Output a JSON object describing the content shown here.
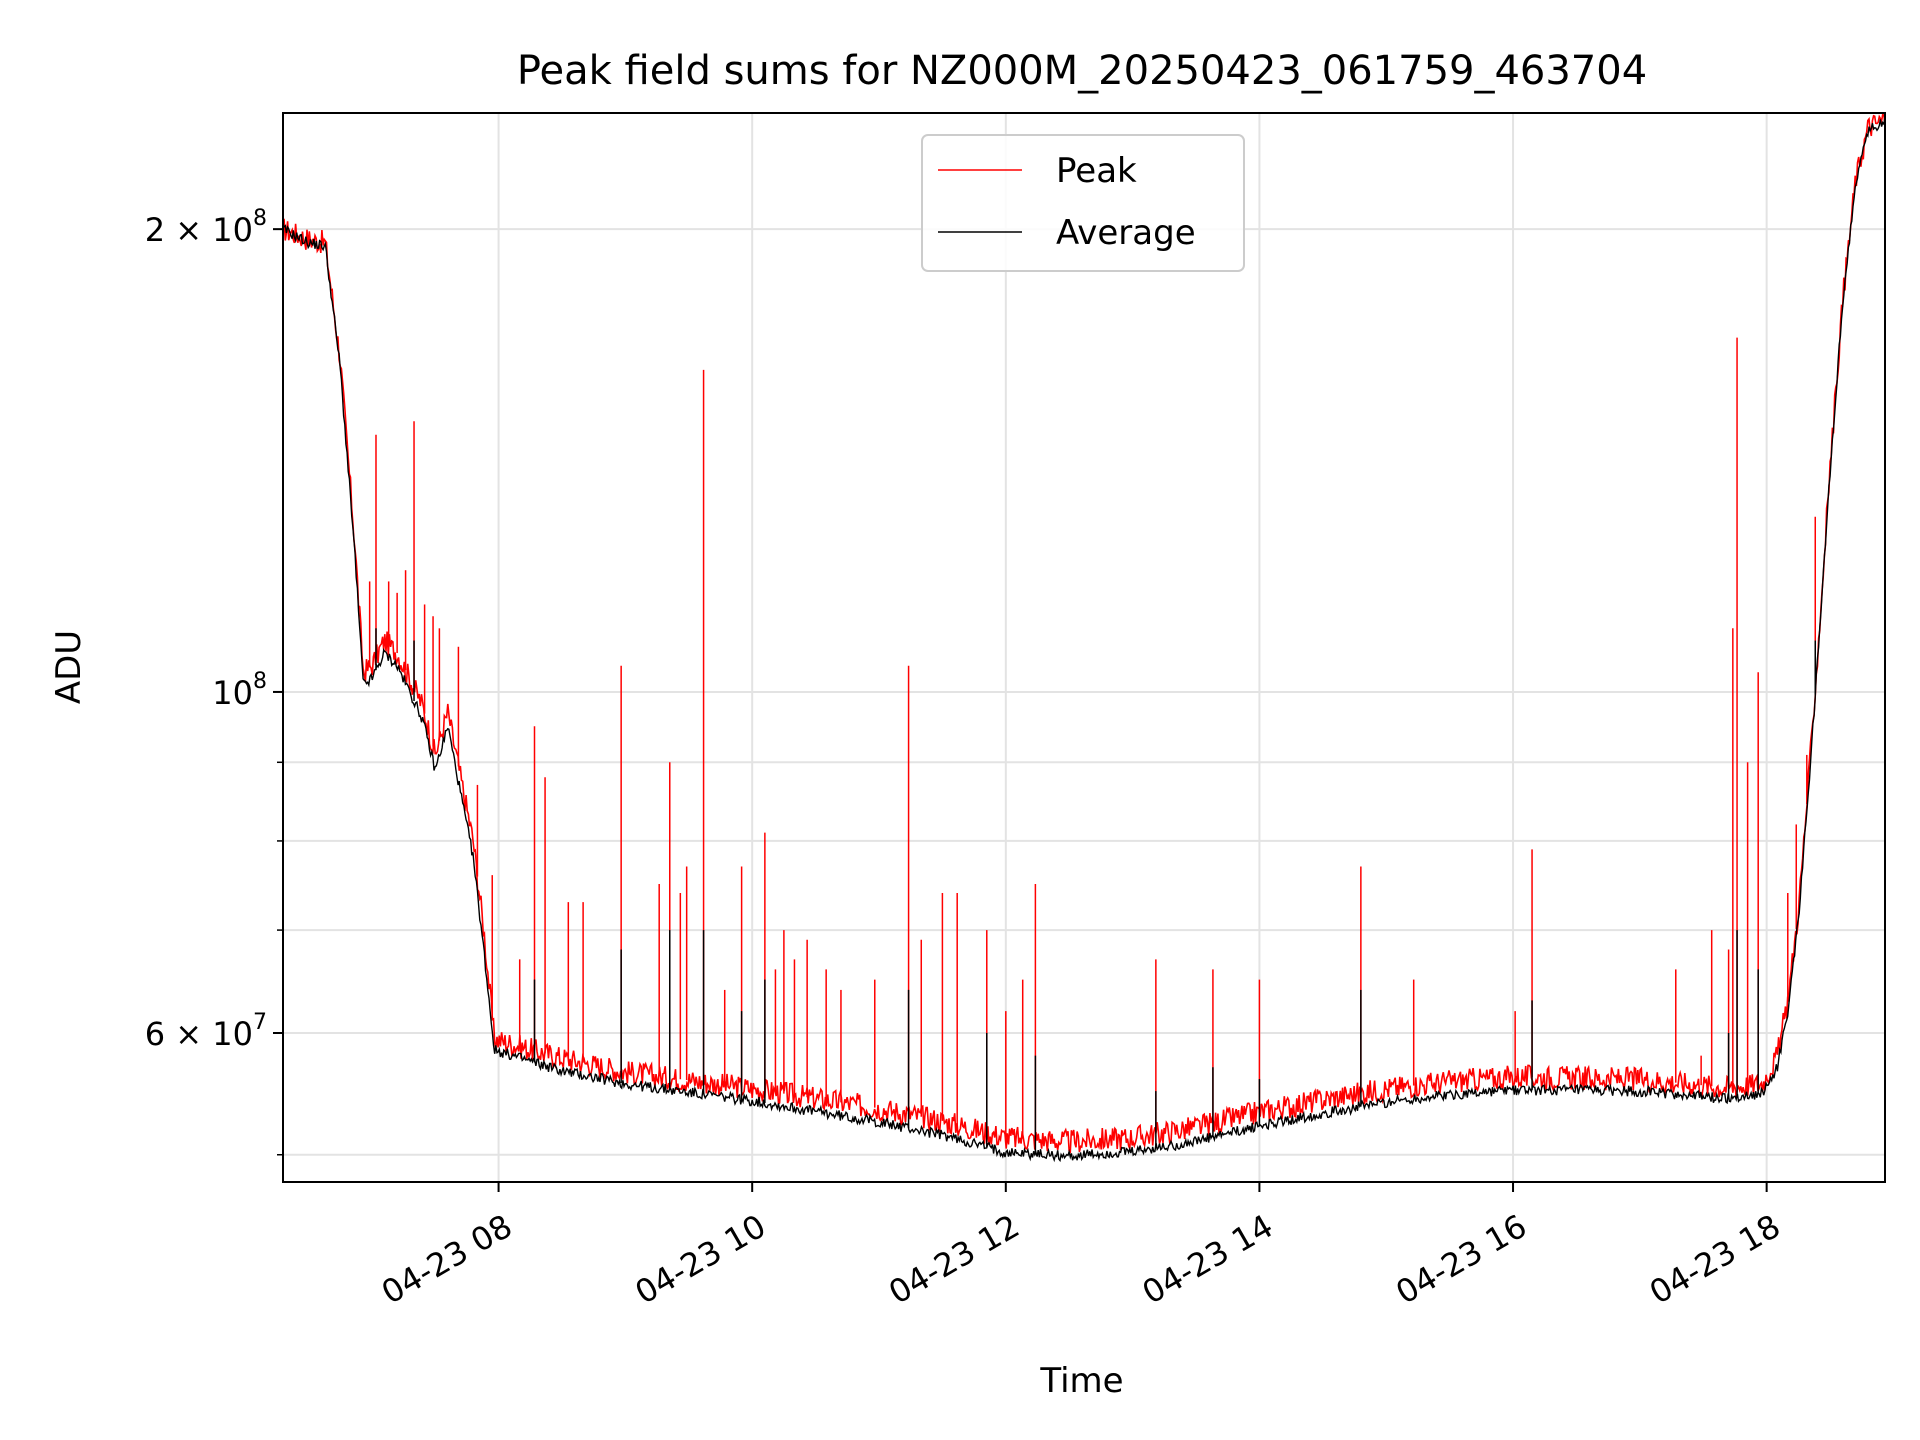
{
  "chart_data": {
    "type": "line",
    "title": "Peak field sums for NZ000M_20250423_061759_463704",
    "xlabel": "Time",
    "ylabel": "ADU",
    "yscale": "log",
    "grid": true,
    "legend_position": "top-center",
    "x_range": [
      "2025-04-23 06:18",
      "2025-04-23 18:56"
    ],
    "ylim": [
      48000000,
      238000000
    ],
    "x_ticks": [
      {
        "t": "2025-04-23 08:00",
        "label": "04-23 08"
      },
      {
        "t": "2025-04-23 10:00",
        "label": "04-23 10"
      },
      {
        "t": "2025-04-23 12:00",
        "label": "04-23 12"
      },
      {
        "t": "2025-04-23 14:00",
        "label": "04-23 14"
      },
      {
        "t": "2025-04-23 16:00",
        "label": "04-23 16"
      },
      {
        "t": "2025-04-23 18:00",
        "label": "04-23 18"
      }
    ],
    "y_major_ticks": [
      {
        "value": 60000000,
        "label": "6 × 10",
        "exp": "7"
      },
      {
        "value": 100000000,
        "label": "10",
        "exp": "8"
      },
      {
        "value": 200000000,
        "label": "2 × 10",
        "exp": "8"
      }
    ],
    "y_minor_ticks": [
      50000000,
      70000000,
      80000000,
      90000000
    ],
    "series": [
      {
        "name": "Peak",
        "color": "#ff0000",
        "baseline": [
          [
            "2025-04-23 06:18",
            200000000
          ],
          [
            "2025-04-23 06:30",
            197000000
          ],
          [
            "2025-04-23 06:38",
            196000000
          ],
          [
            "2025-04-23 06:45",
            165000000
          ],
          [
            "2025-04-23 06:52",
            125000000
          ],
          [
            "2025-04-23 06:56",
            103000000
          ],
          [
            "2025-04-23 07:00",
            104000000
          ],
          [
            "2025-04-23 07:06",
            108000000
          ],
          [
            "2025-04-23 07:12",
            106000000
          ],
          [
            "2025-04-23 07:18",
            102000000
          ],
          [
            "2025-04-23 07:24",
            98000000
          ],
          [
            "2025-04-23 07:30",
            91000000
          ],
          [
            "2025-04-23 07:36",
            97000000
          ],
          [
            "2025-04-23 07:42",
            88000000
          ],
          [
            "2025-04-23 07:48",
            80000000
          ],
          [
            "2025-04-23 07:53",
            70000000
          ],
          [
            "2025-04-23 07:58",
            59500000
          ],
          [
            "2025-04-23 08:10",
            58800000
          ],
          [
            "2025-04-23 08:30",
            57800000
          ],
          [
            "2025-04-23 09:00",
            56600000
          ],
          [
            "2025-04-23 10:00",
            55200000
          ],
          [
            "2025-04-23 11:00",
            53600000
          ],
          [
            "2025-04-23 11:30",
            52600000
          ],
          [
            "2025-04-23 12:00",
            51300000
          ],
          [
            "2025-04-23 12:30",
            51000000
          ],
          [
            "2025-04-23 13:00",
            51300000
          ],
          [
            "2025-04-23 13:30",
            52100000
          ],
          [
            "2025-04-23 14:00",
            53300000
          ],
          [
            "2025-04-23 14:30",
            54300000
          ],
          [
            "2025-04-23 15:00",
            55200000
          ],
          [
            "2025-04-23 15:30",
            55800000
          ],
          [
            "2025-04-23 16:00",
            56200000
          ],
          [
            "2025-04-23 17:00",
            56000000
          ],
          [
            "2025-04-23 17:40",
            55300000
          ],
          [
            "2025-04-23 17:58",
            55600000
          ],
          [
            "2025-04-23 18:05",
            58000000
          ],
          [
            "2025-04-23 18:10",
            63000000
          ],
          [
            "2025-04-23 18:15",
            72000000
          ],
          [
            "2025-04-23 18:20",
            88000000
          ],
          [
            "2025-04-23 18:25",
            110000000
          ],
          [
            "2025-04-23 18:30",
            140000000
          ],
          [
            "2025-04-23 18:36",
            180000000
          ],
          [
            "2025-04-23 18:42",
            215000000
          ],
          [
            "2025-04-23 18:48",
            233000000
          ],
          [
            "2025-04-23 18:56",
            236000000
          ]
        ],
        "spikes": [
          [
            "2025-04-23 06:59",
            118000000
          ],
          [
            "2025-04-23 07:02",
            147000000
          ],
          [
            "2025-04-23 07:08",
            118000000
          ],
          [
            "2025-04-23 07:12",
            116000000
          ],
          [
            "2025-04-23 07:16",
            120000000
          ],
          [
            "2025-04-23 07:20",
            150000000
          ],
          [
            "2025-04-23 07:25",
            114000000
          ],
          [
            "2025-04-23 07:29",
            112000000
          ],
          [
            "2025-04-23 07:32",
            110000000
          ],
          [
            "2025-04-23 07:41",
            107000000
          ],
          [
            "2025-04-23 07:50",
            87000000
          ],
          [
            "2025-04-23 07:57",
            76000000
          ],
          [
            "2025-04-23 08:10",
            67000000
          ],
          [
            "2025-04-23 08:17",
            95000000
          ],
          [
            "2025-04-23 08:22",
            88000000
          ],
          [
            "2025-04-23 08:33",
            73000000
          ],
          [
            "2025-04-23 08:40",
            73000000
          ],
          [
            "2025-04-23 08:58",
            104000000
          ],
          [
            "2025-04-23 09:16",
            75000000
          ],
          [
            "2025-04-23 09:21",
            90000000
          ],
          [
            "2025-04-23 09:26",
            74000000
          ],
          [
            "2025-04-23 09:29",
            77000000
          ],
          [
            "2025-04-23 09:37",
            162000000
          ],
          [
            "2025-04-23 09:47",
            64000000
          ],
          [
            "2025-04-23 09:55",
            77000000
          ],
          [
            "2025-04-23 10:06",
            81000000
          ],
          [
            "2025-04-23 10:11",
            66000000
          ],
          [
            "2025-04-23 10:15",
            70000000
          ],
          [
            "2025-04-23 10:20",
            67000000
          ],
          [
            "2025-04-23 10:26",
            69000000
          ],
          [
            "2025-04-23 10:35",
            66000000
          ],
          [
            "2025-04-23 10:42",
            64000000
          ],
          [
            "2025-04-23 10:58",
            65000000
          ],
          [
            "2025-04-23 11:14",
            104000000
          ],
          [
            "2025-04-23 11:20",
            69000000
          ],
          [
            "2025-04-23 11:30",
            74000000
          ],
          [
            "2025-04-23 11:37",
            74000000
          ],
          [
            "2025-04-23 11:51",
            70000000
          ],
          [
            "2025-04-23 12:00",
            62000000
          ],
          [
            "2025-04-23 12:08",
            65000000
          ],
          [
            "2025-04-23 12:14",
            75000000
          ],
          [
            "2025-04-23 13:11",
            67000000
          ],
          [
            "2025-04-23 13:38",
            66000000
          ],
          [
            "2025-04-23 14:00",
            65000000
          ],
          [
            "2025-04-23 14:48",
            77000000
          ],
          [
            "2025-04-23 15:13",
            65000000
          ],
          [
            "2025-04-23 16:01",
            62000000
          ],
          [
            "2025-04-23 16:09",
            79000000
          ],
          [
            "2025-04-23 17:17",
            66000000
          ],
          [
            "2025-04-23 17:29",
            58000000
          ],
          [
            "2025-04-23 17:34",
            70000000
          ],
          [
            "2025-04-23 17:42",
            68000000
          ],
          [
            "2025-04-23 17:44",
            110000000
          ],
          [
            "2025-04-23 17:46",
            170000000
          ],
          [
            "2025-04-23 17:51",
            90000000
          ],
          [
            "2025-04-23 17:56",
            103000000
          ],
          [
            "2025-04-23 18:10",
            74000000
          ],
          [
            "2025-04-23 18:14",
            82000000
          ],
          [
            "2025-04-23 18:19",
            91000000
          ],
          [
            "2025-04-23 18:23",
            130000000
          ]
        ]
      },
      {
        "name": "Average",
        "color": "#000000",
        "baseline": [
          [
            "2025-04-23 06:18",
            200000000
          ],
          [
            "2025-04-23 06:30",
            196000000
          ],
          [
            "2025-04-23 06:38",
            195000000
          ],
          [
            "2025-04-23 06:45",
            163000000
          ],
          [
            "2025-04-23 06:52",
            123000000
          ],
          [
            "2025-04-23 06:56",
            101000000
          ],
          [
            "2025-04-23 07:00",
            102000000
          ],
          [
            "2025-04-23 07:06",
            106000000
          ],
          [
            "2025-04-23 07:12",
            104000000
          ],
          [
            "2025-04-23 07:18",
            100000000
          ],
          [
            "2025-04-23 07:24",
            96000000
          ],
          [
            "2025-04-23 07:30",
            89000000
          ],
          [
            "2025-04-23 07:36",
            95000000
          ],
          [
            "2025-04-23 07:42",
            86000000
          ],
          [
            "2025-04-23 07:48",
            78000000
          ],
          [
            "2025-04-23 07:53",
            68000000
          ],
          [
            "2025-04-23 07:58",
            58500000
          ],
          [
            "2025-04-23 08:10",
            57800000
          ],
          [
            "2025-04-23 08:30",
            56700000
          ],
          [
            "2025-04-23 09:00",
            55600000
          ],
          [
            "2025-04-23 10:00",
            54200000
          ],
          [
            "2025-04-23 11:00",
            52500000
          ],
          [
            "2025-04-23 11:30",
            51500000
          ],
          [
            "2025-04-23 12:00",
            50200000
          ],
          [
            "2025-04-23 12:30",
            49900000
          ],
          [
            "2025-04-23 13:00",
            50200000
          ],
          [
            "2025-04-23 13:30",
            51000000
          ],
          [
            "2025-04-23 14:00",
            52200000
          ],
          [
            "2025-04-23 14:30",
            53200000
          ],
          [
            "2025-04-23 15:00",
            54100000
          ],
          [
            "2025-04-23 15:30",
            54700000
          ],
          [
            "2025-04-23 16:00",
            55100000
          ],
          [
            "2025-04-23 17:00",
            55000000
          ],
          [
            "2025-04-23 17:40",
            54400000
          ],
          [
            "2025-04-23 17:58",
            54800000
          ],
          [
            "2025-04-23 18:05",
            57000000
          ],
          [
            "2025-04-23 18:10",
            62000000
          ],
          [
            "2025-04-23 18:15",
            71000000
          ],
          [
            "2025-04-23 18:20",
            87000000
          ],
          [
            "2025-04-23 18:25",
            109000000
          ],
          [
            "2025-04-23 18:30",
            139000000
          ],
          [
            "2025-04-23 18:36",
            179000000
          ],
          [
            "2025-04-23 18:42",
            214000000
          ],
          [
            "2025-04-23 18:48",
            232000000
          ],
          [
            "2025-04-23 18:56",
            235000000
          ]
        ],
        "spikes": [
          [
            "2025-04-23 07:02",
            110000000
          ],
          [
            "2025-04-23 07:20",
            108000000
          ],
          [
            "2025-04-23 08:17",
            65000000
          ],
          [
            "2025-04-23 08:58",
            68000000
          ],
          [
            "2025-04-23 09:21",
            70000000
          ],
          [
            "2025-04-23 09:37",
            70000000
          ],
          [
            "2025-04-23 09:55",
            62000000
          ],
          [
            "2025-04-23 10:06",
            65000000
          ],
          [
            "2025-04-23 11:14",
            64000000
          ],
          [
            "2025-04-23 11:51",
            60000000
          ],
          [
            "2025-04-23 12:14",
            58000000
          ],
          [
            "2025-04-23 13:11",
            55000000
          ],
          [
            "2025-04-23 13:38",
            57000000
          ],
          [
            "2025-04-23 14:00",
            56000000
          ],
          [
            "2025-04-23 14:48",
            64000000
          ],
          [
            "2025-04-23 16:09",
            63000000
          ],
          [
            "2025-04-23 17:42",
            60000000
          ],
          [
            "2025-04-23 17:46",
            70000000
          ],
          [
            "2025-04-23 17:56",
            66000000
          ],
          [
            "2025-04-23 18:23",
            108000000
          ]
        ]
      }
    ]
  }
}
